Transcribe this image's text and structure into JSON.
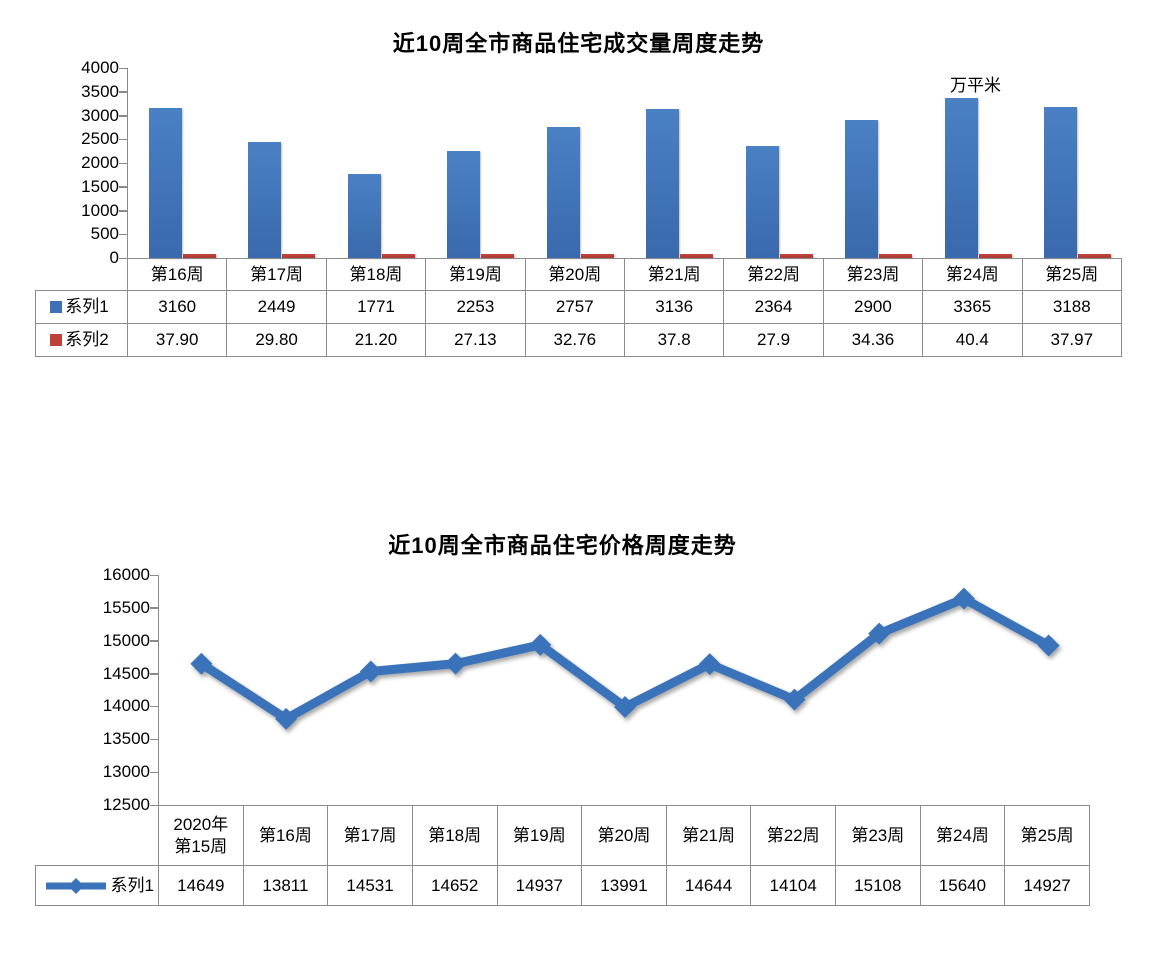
{
  "chart_data": [
    {
      "type": "bar",
      "title": "近10周全市商品住宅成交量周度走势",
      "unit_annotation": "万平米",
      "categories": [
        "第16周",
        "第17周",
        "第18周",
        "第19周",
        "第20周",
        "第21周",
        "第22周",
        "第23周",
        "第24周",
        "第25周"
      ],
      "series": [
        {
          "name": "系列1",
          "color": "#3E6FB7",
          "values": [
            "3160",
            "2449",
            "1771",
            "2253",
            "2757",
            "3136",
            "2364",
            "2900",
            "3365",
            "3188"
          ]
        },
        {
          "name": "系列2",
          "color": "#BE4139",
          "values": [
            "37.90",
            "29.80",
            "21.20",
            "27.13",
            "32.76",
            "37.8",
            "27.9",
            "34.36",
            "40.4",
            "37.97"
          ]
        }
      ],
      "ylim": [
        0,
        4000
      ],
      "ytick_step": 500,
      "grid": false,
      "legend_position": "table-left"
    },
    {
      "type": "line",
      "title": "近10周全市商品住宅价格周度走势",
      "categories": [
        "2020年\n第15周",
        "第16周",
        "第17周",
        "第18周",
        "第19周",
        "第20周",
        "第21周",
        "第22周",
        "第23周",
        "第24周",
        "第25周"
      ],
      "series": [
        {
          "name": "系列1",
          "color": "#3B73BB",
          "values": [
            "14649",
            "13811",
            "14531",
            "14652",
            "14937",
            "13991",
            "14644",
            "14104",
            "15108",
            "15640",
            "14927"
          ]
        }
      ],
      "ylim": [
        12500,
        16000
      ],
      "ytick_step": 500,
      "grid": false,
      "legend_position": "table-left"
    }
  ]
}
